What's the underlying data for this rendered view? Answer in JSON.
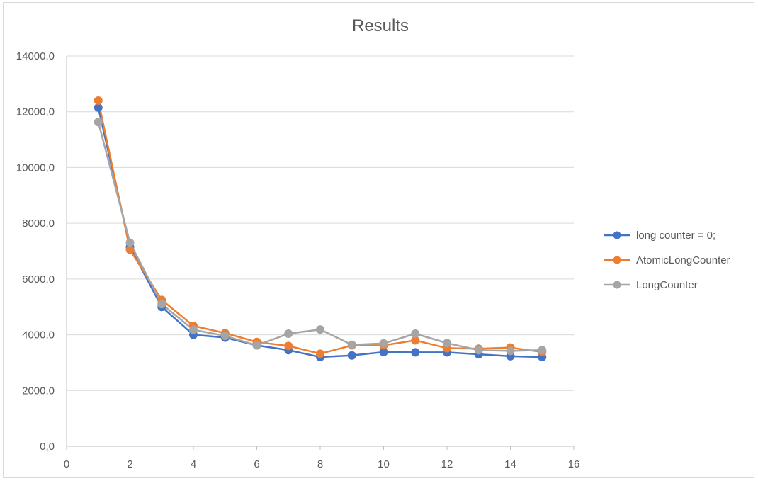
{
  "chart_data": {
    "type": "scatter",
    "title": "Results",
    "xlabel": "",
    "ylabel": "",
    "xlim": [
      0,
      16
    ],
    "ylim": [
      0,
      14000
    ],
    "x_ticks": [
      "0",
      "2",
      "4",
      "6",
      "8",
      "10",
      "12",
      "14",
      "16"
    ],
    "y_ticks": [
      "0,0",
      "2000,0",
      "4000,0",
      "6000,0",
      "8000,0",
      "10000,0",
      "12000,0",
      "14000,0"
    ],
    "grid": "horizontal",
    "legend_position": "right",
    "x": [
      1,
      2,
      3,
      4,
      5,
      6,
      7,
      8,
      9,
      10,
      11,
      12,
      13,
      14,
      15
    ],
    "series": [
      {
        "name": "long counter = 0;",
        "color": "#4472c4",
        "values": [
          12150,
          7150,
          5000,
          4000,
          3900,
          3620,
          3450,
          3200,
          3260,
          3380,
          3370,
          3370,
          3300,
          3230,
          3200
        ]
      },
      {
        "name": "AtomicLongCounter",
        "color": "#ed7d31",
        "values": [
          12400,
          7050,
          5250,
          4320,
          4060,
          3740,
          3600,
          3320,
          3620,
          3620,
          3800,
          3520,
          3500,
          3540,
          3380
        ]
      },
      {
        "name": "LongCounter",
        "color": "#a5a5a5",
        "values": [
          11630,
          7300,
          5100,
          4180,
          3960,
          3620,
          4040,
          4190,
          3640,
          3690,
          4040,
          3700,
          3450,
          3420,
          3450
        ]
      }
    ]
  }
}
